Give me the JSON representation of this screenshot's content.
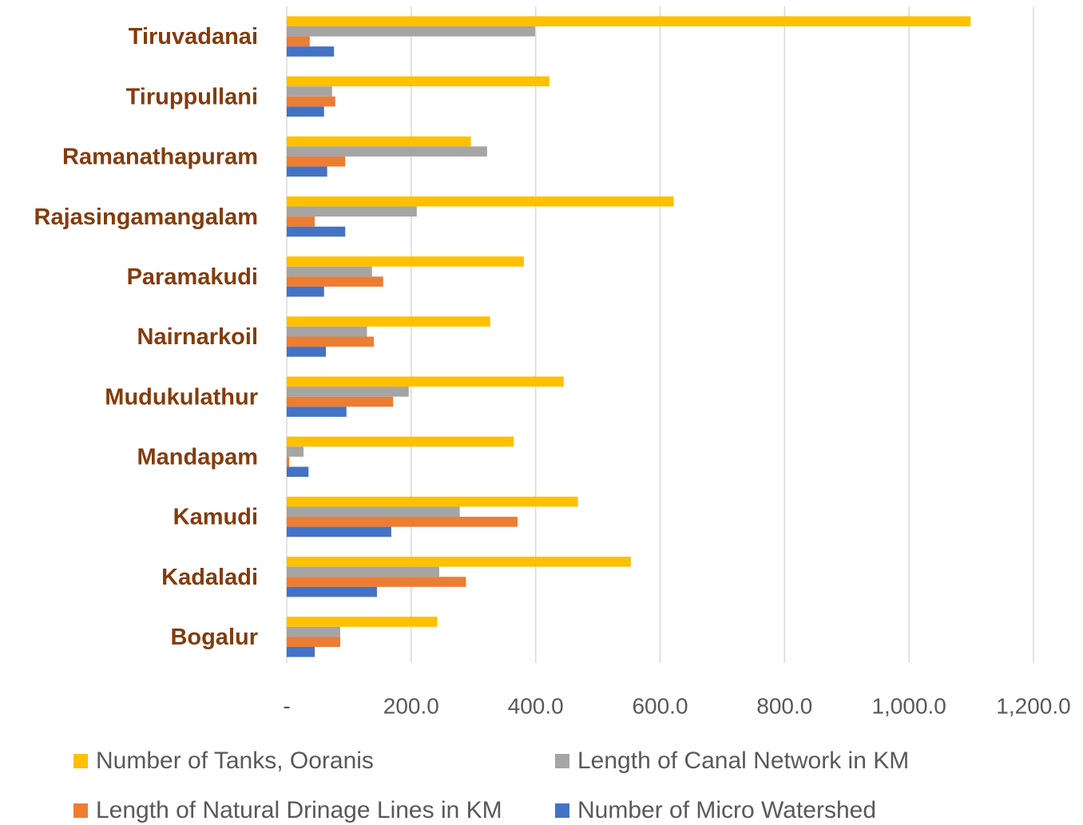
{
  "chart_data": {
    "type": "hbar",
    "categories": [
      "Tiruvadanai",
      "Tiruppullani",
      "Ramanathapuram",
      "Rajasingamangalam",
      "Paramakudi",
      "Nairnarkoil",
      "Mudukulathur",
      "Mandapam",
      "Kamudi",
      "Kadaladi",
      "Bogalur"
    ],
    "series": [
      {
        "name": "Number of Tanks, Ooranis",
        "color": "#ffc000",
        "values": [
          1099,
          422,
          296,
          622,
          381,
          327,
          445,
          365,
          468,
          553,
          242
        ]
      },
      {
        "name": "Length of Canal Network in KM",
        "color": "#a5a5a5",
        "values": [
          399,
          73,
          322,
          209,
          137,
          129,
          196,
          27,
          278,
          245,
          86
        ]
      },
      {
        "name": "Length of Natural Drinage Lines in KM",
        "color": "#ed7d31",
        "values": [
          37,
          78,
          94,
          45,
          155,
          140,
          171,
          4,
          371,
          288,
          86
        ]
      },
      {
        "name": "Number of Micro Watershed",
        "color": "#4472c4",
        "values": [
          76,
          60,
          65,
          94,
          60,
          63,
          96,
          35,
          168,
          145,
          45
        ]
      }
    ],
    "xlim": [
      0,
      1200
    ],
    "xticks": [
      {
        "value": 0,
        "label": "-"
      },
      {
        "value": 200,
        "label": "200.0"
      },
      {
        "value": 400,
        "label": "400.0"
      },
      {
        "value": 600,
        "label": "600.0"
      },
      {
        "value": 800,
        "label": "800.0"
      },
      {
        "value": 1000,
        "label": "1,000.0"
      },
      {
        "value": 1200,
        "label": "1,200.0"
      }
    ],
    "grid": true,
    "legend": "bottom"
  }
}
